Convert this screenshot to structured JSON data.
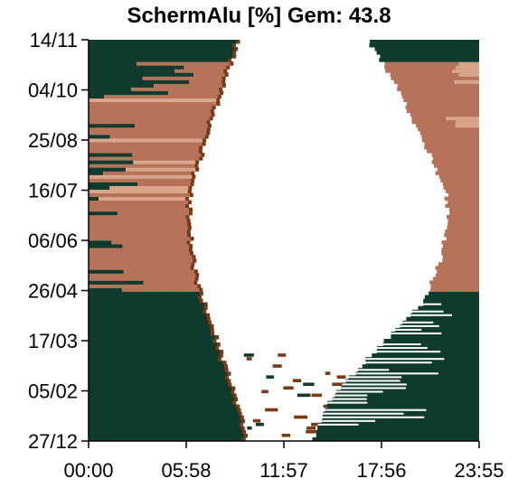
{
  "chart_data": {
    "type": "heatmap",
    "title": "SchermAlu [%] Gem: 43.8",
    "xlabel": "",
    "ylabel": "",
    "x_tick_labels": [
      "00:00",
      "05:58",
      "11:57",
      "17:56",
      "23:55"
    ],
    "y_tick_labels": [
      "14/11",
      "04/10",
      "25/08",
      "16/07",
      "06/06",
      "26/04",
      "17/03",
      "05/02",
      "27/12"
    ],
    "grid": false,
    "legend": "none",
    "colors": {
      "closed_night": "#0f3b2c",
      "open_day": "#ffffff",
      "partial": "#b7735a",
      "partial_light": "#d9a58b",
      "edge": "#7a3a16"
    }
  }
}
